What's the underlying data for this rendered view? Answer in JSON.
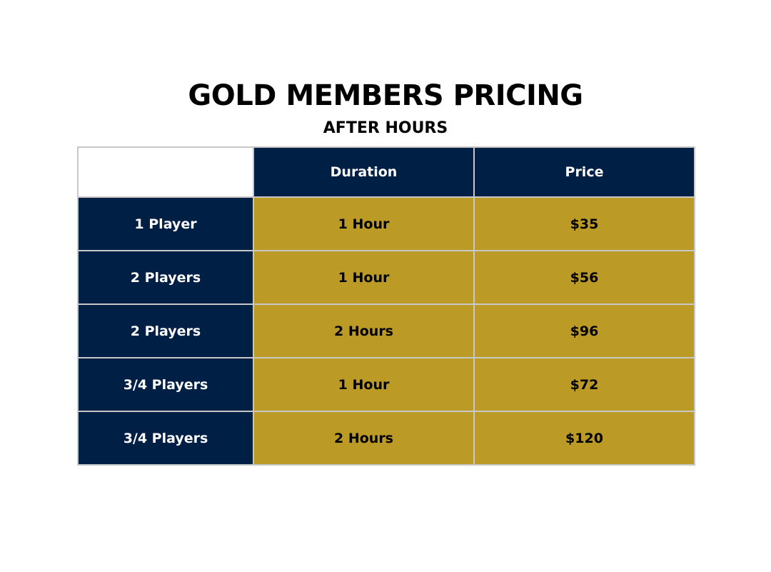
{
  "title": "GOLD MEMBERS PRICING",
  "subtitle": "AFTER HOURS",
  "table": {
    "headers": [
      "",
      "Duration",
      "Price"
    ],
    "rows": [
      {
        "players": "1 Player",
        "duration": "1 Hour",
        "price": "$35"
      },
      {
        "players": "2 Players",
        "duration": "1 Hour",
        "price": "$56"
      },
      {
        "players": "2 Players",
        "duration": "2 Hours",
        "price": "$96"
      },
      {
        "players": "3/4 Players",
        "duration": "1 Hour",
        "price": "$72"
      },
      {
        "players": "3/4 Players",
        "duration": "2 Hours",
        "price": "$120"
      }
    ]
  },
  "colors": {
    "navy": "#001f45",
    "gold": "#bb9a25",
    "border": "#c8c8c8"
  }
}
